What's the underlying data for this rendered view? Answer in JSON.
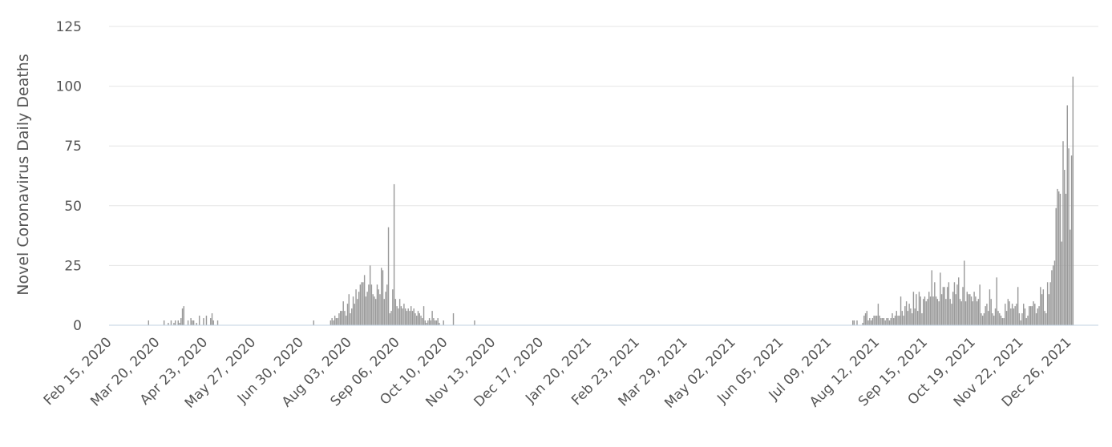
{
  "chart_data": {
    "type": "bar",
    "title": "",
    "xlabel": "",
    "ylabel": "Novel Coronavirus Daily Deaths",
    "ylim": [
      0,
      125
    ],
    "yticks": [
      0,
      25,
      50,
      75,
      100,
      125
    ],
    "grid": true,
    "legend": "none",
    "bar_color": "#999999",
    "xlim": [
      "2020-02-15",
      "2022-01-16"
    ],
    "xtick_labels": [
      "Feb 15, 2020",
      "Mar 20, 2020",
      "Apr 23, 2020",
      "May 27, 2020",
      "Jun 30, 2020",
      "Aug 03, 2020",
      "Sep 06, 2020",
      "Oct 10, 2020",
      "Nov 13, 2020",
      "Dec 17, 2020",
      "Jan 20, 2021",
      "Feb 23, 2021",
      "Mar 29, 2021",
      "May 02, 2021",
      "Jun 05, 2021",
      "Jul 09, 2021",
      "Aug 12, 2021",
      "Sep 15, 2021",
      "Oct 19, 2021",
      "Nov 22, 2021",
      "Dec 26, 2021"
    ],
    "xtick_dates": [
      "2020-02-15",
      "2020-03-20",
      "2020-04-23",
      "2020-05-27",
      "2020-06-30",
      "2020-08-03",
      "2020-09-06",
      "2020-10-10",
      "2020-11-13",
      "2020-12-17",
      "2021-01-20",
      "2021-02-23",
      "2021-03-29",
      "2021-05-02",
      "2021-06-05",
      "2021-07-09",
      "2021-08-12",
      "2021-09-15",
      "2021-10-19",
      "2021-11-22",
      "2021-12-26"
    ],
    "series": [
      {
        "values": [
          [
            "2020-03-14",
            2
          ],
          [
            "2020-03-25",
            2
          ],
          [
            "2020-03-28",
            1
          ],
          [
            "2020-03-30",
            2
          ],
          [
            "2020-04-01",
            1
          ],
          [
            "2020-04-02",
            2
          ],
          [
            "2020-04-04",
            2
          ],
          [
            "2020-04-05",
            1
          ],
          [
            "2020-04-06",
            3
          ],
          [
            "2020-04-07",
            7
          ],
          [
            "2020-04-08",
            8
          ],
          [
            "2020-04-11",
            2
          ],
          [
            "2020-04-13",
            3
          ],
          [
            "2020-04-14",
            2
          ],
          [
            "2020-04-15",
            2
          ],
          [
            "2020-04-17",
            1
          ],
          [
            "2020-04-19",
            4
          ],
          [
            "2020-04-22",
            3
          ],
          [
            "2020-04-24",
            4
          ],
          [
            "2020-04-27",
            3
          ],
          [
            "2020-04-28",
            5
          ],
          [
            "2020-04-29",
            2
          ],
          [
            "2020-05-02",
            2
          ],
          [
            "2020-07-09",
            2
          ],
          [
            "2020-07-21",
            2
          ],
          [
            "2020-07-22",
            3
          ],
          [
            "2020-07-23",
            2
          ],
          [
            "2020-07-24",
            4
          ],
          [
            "2020-07-25",
            3
          ],
          [
            "2020-07-26",
            3
          ],
          [
            "2020-07-27",
            5
          ],
          [
            "2020-07-28",
            6
          ],
          [
            "2020-07-29",
            6
          ],
          [
            "2020-07-30",
            10
          ],
          [
            "2020-07-31",
            6
          ],
          [
            "2020-08-01",
            4
          ],
          [
            "2020-08-02",
            9
          ],
          [
            "2020-08-03",
            13
          ],
          [
            "2020-08-04",
            5
          ],
          [
            "2020-08-05",
            7
          ],
          [
            "2020-08-06",
            12
          ],
          [
            "2020-08-07",
            9
          ],
          [
            "2020-08-08",
            15
          ],
          [
            "2020-08-09",
            11
          ],
          [
            "2020-08-10",
            14
          ],
          [
            "2020-08-11",
            17
          ],
          [
            "2020-08-12",
            18
          ],
          [
            "2020-08-13",
            18
          ],
          [
            "2020-08-14",
            21
          ],
          [
            "2020-08-15",
            12
          ],
          [
            "2020-08-16",
            14
          ],
          [
            "2020-08-17",
            17
          ],
          [
            "2020-08-18",
            25
          ],
          [
            "2020-08-19",
            17
          ],
          [
            "2020-08-20",
            13
          ],
          [
            "2020-08-21",
            12
          ],
          [
            "2020-08-22",
            11
          ],
          [
            "2020-08-23",
            17
          ],
          [
            "2020-08-24",
            15
          ],
          [
            "2020-08-25",
            13
          ],
          [
            "2020-08-26",
            24
          ],
          [
            "2020-08-27",
            23
          ],
          [
            "2020-08-28",
            11
          ],
          [
            "2020-08-29",
            14
          ],
          [
            "2020-08-30",
            17
          ],
          [
            "2020-08-31",
            41
          ],
          [
            "2020-09-01",
            5
          ],
          [
            "2020-09-02",
            6
          ],
          [
            "2020-09-03",
            15
          ],
          [
            "2020-09-04",
            59
          ],
          [
            "2020-09-05",
            11
          ],
          [
            "2020-09-06",
            8
          ],
          [
            "2020-09-07",
            7
          ],
          [
            "2020-09-08",
            11
          ],
          [
            "2020-09-09",
            8
          ],
          [
            "2020-09-10",
            7
          ],
          [
            "2020-09-11",
            9
          ],
          [
            "2020-09-12",
            7
          ],
          [
            "2020-09-13",
            6
          ],
          [
            "2020-09-14",
            7
          ],
          [
            "2020-09-15",
            6
          ],
          [
            "2020-09-16",
            8
          ],
          [
            "2020-09-17",
            6
          ],
          [
            "2020-09-18",
            7
          ],
          [
            "2020-09-19",
            5
          ],
          [
            "2020-09-20",
            4
          ],
          [
            "2020-09-21",
            6
          ],
          [
            "2020-09-22",
            5
          ],
          [
            "2020-09-23",
            4
          ],
          [
            "2020-09-24",
            3
          ],
          [
            "2020-09-25",
            8
          ],
          [
            "2020-09-26",
            2
          ],
          [
            "2020-09-27",
            1
          ],
          [
            "2020-09-28",
            2
          ],
          [
            "2020-09-29",
            3
          ],
          [
            "2020-09-30",
            2
          ],
          [
            "2020-10-01",
            6
          ],
          [
            "2020-10-02",
            3
          ],
          [
            "2020-10-03",
            2
          ],
          [
            "2020-10-04",
            2
          ],
          [
            "2020-10-05",
            3
          ],
          [
            "2020-10-06",
            1
          ],
          [
            "2020-10-09",
            2
          ],
          [
            "2020-10-16",
            5
          ],
          [
            "2020-10-31",
            2
          ],
          [
            "2021-07-26",
            2
          ],
          [
            "2021-07-27",
            2
          ],
          [
            "2021-07-29",
            2
          ],
          [
            "2021-08-02",
            1
          ],
          [
            "2021-08-03",
            4
          ],
          [
            "2021-08-04",
            5
          ],
          [
            "2021-08-05",
            6
          ],
          [
            "2021-08-06",
            2
          ],
          [
            "2021-08-07",
            3
          ],
          [
            "2021-08-08",
            2
          ],
          [
            "2021-08-09",
            3
          ],
          [
            "2021-08-10",
            4
          ],
          [
            "2021-08-11",
            4
          ],
          [
            "2021-08-12",
            4
          ],
          [
            "2021-08-13",
            9
          ],
          [
            "2021-08-14",
            4
          ],
          [
            "2021-08-15",
            3
          ],
          [
            "2021-08-16",
            3
          ],
          [
            "2021-08-17",
            3
          ],
          [
            "2021-08-18",
            2
          ],
          [
            "2021-08-19",
            3
          ],
          [
            "2021-08-20",
            3
          ],
          [
            "2021-08-21",
            2
          ],
          [
            "2021-08-22",
            3
          ],
          [
            "2021-08-23",
            5
          ],
          [
            "2021-08-24",
            3
          ],
          [
            "2021-08-25",
            4
          ],
          [
            "2021-08-26",
            6
          ],
          [
            "2021-08-27",
            4
          ],
          [
            "2021-08-28",
            4
          ],
          [
            "2021-08-29",
            12
          ],
          [
            "2021-08-30",
            6
          ],
          [
            "2021-08-31",
            4
          ],
          [
            "2021-09-01",
            8
          ],
          [
            "2021-09-02",
            10
          ],
          [
            "2021-09-03",
            6
          ],
          [
            "2021-09-04",
            9
          ],
          [
            "2021-09-05",
            7
          ],
          [
            "2021-09-06",
            5
          ],
          [
            "2021-09-07",
            14
          ],
          [
            "2021-09-08",
            7
          ],
          [
            "2021-09-09",
            13
          ],
          [
            "2021-09-10",
            6
          ],
          [
            "2021-09-11",
            14
          ],
          [
            "2021-09-12",
            12
          ],
          [
            "2021-09-13",
            5
          ],
          [
            "2021-09-14",
            11
          ],
          [
            "2021-09-15",
            12
          ],
          [
            "2021-09-16",
            10
          ],
          [
            "2021-09-17",
            11
          ],
          [
            "2021-09-18",
            14
          ],
          [
            "2021-09-19",
            12
          ],
          [
            "2021-09-20",
            23
          ],
          [
            "2021-09-21",
            12
          ],
          [
            "2021-09-22",
            18
          ],
          [
            "2021-09-23",
            12
          ],
          [
            "2021-09-24",
            11
          ],
          [
            "2021-09-25",
            10
          ],
          [
            "2021-09-26",
            22
          ],
          [
            "2021-09-27",
            13
          ],
          [
            "2021-09-28",
            16
          ],
          [
            "2021-09-29",
            16
          ],
          [
            "2021-09-30",
            11
          ],
          [
            "2021-10-01",
            16
          ],
          [
            "2021-10-02",
            18
          ],
          [
            "2021-10-03",
            11
          ],
          [
            "2021-10-04",
            9
          ],
          [
            "2021-10-05",
            14
          ],
          [
            "2021-10-06",
            18
          ],
          [
            "2021-10-07",
            13
          ],
          [
            "2021-10-08",
            17
          ],
          [
            "2021-10-09",
            20
          ],
          [
            "2021-10-10",
            11
          ],
          [
            "2021-10-11",
            10
          ],
          [
            "2021-10-12",
            16
          ],
          [
            "2021-10-13",
            27
          ],
          [
            "2021-10-14",
            10
          ],
          [
            "2021-10-15",
            14
          ],
          [
            "2021-10-16",
            13
          ],
          [
            "2021-10-17",
            13
          ],
          [
            "2021-10-18",
            12
          ],
          [
            "2021-10-19",
            10
          ],
          [
            "2021-10-20",
            14
          ],
          [
            "2021-10-21",
            12
          ],
          [
            "2021-10-22",
            10
          ],
          [
            "2021-10-23",
            11
          ],
          [
            "2021-10-24",
            17
          ],
          [
            "2021-10-25",
            5
          ],
          [
            "2021-10-26",
            4
          ],
          [
            "2021-10-27",
            5
          ],
          [
            "2021-10-28",
            8
          ],
          [
            "2021-10-29",
            9
          ],
          [
            "2021-10-30",
            6
          ],
          [
            "2021-10-31",
            15
          ],
          [
            "2021-11-01",
            11
          ],
          [
            "2021-11-02",
            5
          ],
          [
            "2021-11-03",
            4
          ],
          [
            "2021-11-04",
            7
          ],
          [
            "2021-11-05",
            20
          ],
          [
            "2021-11-06",
            6
          ],
          [
            "2021-11-07",
            5
          ],
          [
            "2021-11-08",
            4
          ],
          [
            "2021-11-09",
            3
          ],
          [
            "2021-11-10",
            3
          ],
          [
            "2021-11-11",
            9
          ],
          [
            "2021-11-12",
            6
          ],
          [
            "2021-11-13",
            11
          ],
          [
            "2021-11-14",
            10
          ],
          [
            "2021-11-15",
            7
          ],
          [
            "2021-11-16",
            9
          ],
          [
            "2021-11-17",
            7
          ],
          [
            "2021-11-18",
            8
          ],
          [
            "2021-11-19",
            9
          ],
          [
            "2021-11-20",
            16
          ],
          [
            "2021-11-21",
            5
          ],
          [
            "2021-11-22",
            2
          ],
          [
            "2021-11-23",
            5
          ],
          [
            "2021-11-24",
            9
          ],
          [
            "2021-11-25",
            7
          ],
          [
            "2021-11-26",
            3
          ],
          [
            "2021-11-27",
            4
          ],
          [
            "2021-11-28",
            8
          ],
          [
            "2021-11-29",
            8
          ],
          [
            "2021-11-30",
            8
          ],
          [
            "2021-12-01",
            10
          ],
          [
            "2021-12-02",
            9
          ],
          [
            "2021-12-03",
            5
          ],
          [
            "2021-12-04",
            7
          ],
          [
            "2021-12-05",
            8
          ],
          [
            "2021-12-06",
            16
          ],
          [
            "2021-12-07",
            13
          ],
          [
            "2021-12-08",
            15
          ],
          [
            "2021-12-09",
            6
          ],
          [
            "2021-12-10",
            5
          ],
          [
            "2021-12-11",
            18
          ],
          [
            "2021-12-12",
            13
          ],
          [
            "2021-12-13",
            18
          ],
          [
            "2021-12-14",
            23
          ],
          [
            "2021-12-15",
            25
          ],
          [
            "2021-12-16",
            27
          ],
          [
            "2021-12-17",
            49
          ],
          [
            "2021-12-18",
            57
          ],
          [
            "2021-12-19",
            56
          ],
          [
            "2021-12-20",
            55
          ],
          [
            "2021-12-21",
            35
          ],
          [
            "2021-12-22",
            77
          ],
          [
            "2021-12-23",
            65
          ],
          [
            "2021-12-24",
            55
          ],
          [
            "2021-12-25",
            92
          ],
          [
            "2021-12-26",
            74
          ],
          [
            "2021-12-27",
            40
          ],
          [
            "2021-12-28",
            71
          ],
          [
            "2021-12-29",
            104
          ]
        ]
      }
    ]
  }
}
